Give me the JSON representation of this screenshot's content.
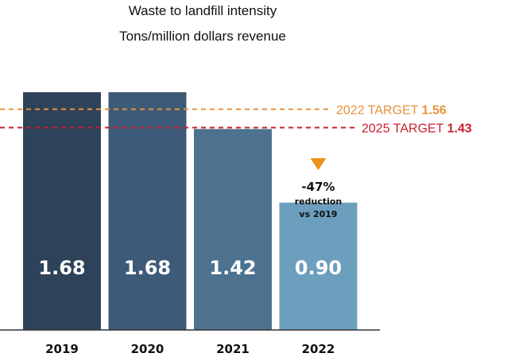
{
  "chart_data": {
    "type": "bar",
    "title": "Waste to landfill intensity",
    "subtitle": "Tons/million dollars revenue",
    "categories": [
      "2019",
      "2020",
      "2021",
      "2022"
    ],
    "values": [
      1.68,
      1.68,
      1.42,
      0.9
    ],
    "value_labels": [
      "1.68",
      "1.68",
      "1.42",
      "0.90"
    ],
    "bar_colors": [
      "#2e4259",
      "#3d5a78",
      "#4c7290",
      "#6c9fbe"
    ],
    "ylim": [
      0,
      1.68
    ],
    "grid": false,
    "targets": [
      {
        "label": "2022 TARGET",
        "value_label": "1.56",
        "value": 1.56,
        "color": "#e8913a"
      },
      {
        "label": "2025 TARGET",
        "value_label": "1.43",
        "value": 1.43,
        "color": "#c8202f"
      }
    ],
    "annotation": {
      "category": "2022",
      "headline": "-47%",
      "line1": "reduction",
      "line2": "vs 2019",
      "marker_color": "#f0901e"
    }
  }
}
